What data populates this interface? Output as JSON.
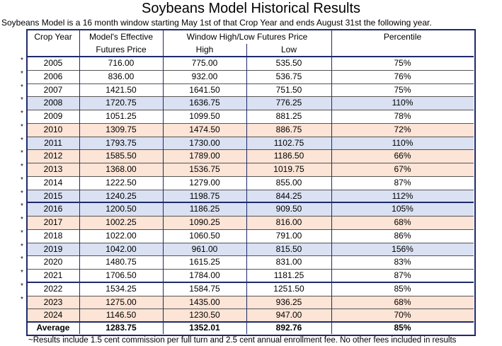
{
  "header": {
    "title": "Soybeans Model Historical Results",
    "subtitle": "Soybeans Model is a 16 month window starting May 1st of that Crop Year and ends August 31st the following year."
  },
  "table": {
    "columns": {
      "year": "Crop Year",
      "model": [
        "Model's Effective",
        "Futures Price"
      ],
      "window": "Window High/Low Futures Price",
      "high": "High",
      "low": "Low",
      "percentile": "Percentile"
    },
    "rows": [
      {
        "marker": "*",
        "shade": null,
        "cells": [
          "2005",
          "716.00",
          "775.00",
          "535.50",
          "75%"
        ]
      },
      {
        "marker": "*",
        "shade": null,
        "cells": [
          "2006",
          "836.00",
          "932.00",
          "536.75",
          "76%"
        ]
      },
      {
        "marker": "*",
        "shade": null,
        "cells": [
          "2007",
          "1421.50",
          "1641.50",
          "751.50",
          "75%"
        ]
      },
      {
        "marker": "*",
        "shade": "#d9e1f2",
        "cells": [
          "2008",
          "1720.75",
          "1636.75",
          "776.25",
          "110%"
        ]
      },
      {
        "marker": "*",
        "shade": null,
        "cells": [
          "2009",
          "1051.25",
          "1099.50",
          "881.25",
          "78%"
        ]
      },
      {
        "marker": "*",
        "shade": "#fce4d6",
        "cells": [
          "2010",
          "1309.75",
          "1474.50",
          "886.75",
          "72%"
        ]
      },
      {
        "marker": "*",
        "shade": "#d9e1f2",
        "cells": [
          "2011",
          "1793.75",
          "1730.00",
          "1102.75",
          "110%"
        ]
      },
      {
        "marker": "*",
        "shade": "#fce4d6",
        "cells": [
          "2012",
          "1585.50",
          "1789.00",
          "1186.50",
          "66%"
        ]
      },
      {
        "marker": "*",
        "shade": "#fce4d6",
        "cells": [
          "2013",
          "1368.00",
          "1536.75",
          "1019.75",
          "67%"
        ]
      },
      {
        "marker": "*",
        "shade": null,
        "cells": [
          "2014",
          "1222.50",
          "1279.00",
          "855.00",
          "87%"
        ]
      },
      {
        "marker": "*",
        "shade": "#d9e1f2",
        "cells": [
          "2015",
          "1240.25",
          "1198.75",
          "844.25",
          "112%"
        ]
      },
      {
        "marker": "*",
        "shade": "#d9e1f2",
        "cells": [
          "2016",
          "1200.50",
          "1186.25",
          "909.50",
          "105%"
        ]
      },
      {
        "marker": "*",
        "shade": "#fce4d6",
        "cells": [
          "2017",
          "1002.25",
          "1090.25",
          "816.00",
          "68%"
        ]
      },
      {
        "marker": "*",
        "shade": null,
        "cells": [
          "2018",
          "1022.00",
          "1060.50",
          "791.00",
          "86%"
        ]
      },
      {
        "marker": "*",
        "shade": "#d9e1f2",
        "cells": [
          "2019",
          "1042.00",
          "961.00",
          "815.50",
          "156%"
        ]
      },
      {
        "marker": "*",
        "shade": null,
        "cells": [
          "2020",
          "1480.75",
          "1615.25",
          "831.00",
          "83%"
        ]
      },
      {
        "marker": "*",
        "shade": null,
        "cells": [
          "2021",
          "1706.50",
          "1784.00",
          "1181.25",
          "87%"
        ]
      },
      {
        "marker": "*",
        "shade": null,
        "cells": [
          "2022",
          "1534.25",
          "1584.75",
          "1251.50",
          "85%"
        ]
      },
      {
        "marker": "*",
        "shade": "#fce4d6",
        "cells": [
          "2023",
          "1275.00",
          "1435.00",
          "936.25",
          "68%"
        ]
      },
      {
        "marker": null,
        "shade": "#fce4d6",
        "cells": [
          "2024",
          "1146.50",
          "1230.50",
          "947.00",
          "70%"
        ]
      }
    ],
    "average": [
      "Average",
      "1283.75",
      "1352.01",
      "892.76",
      "85%"
    ]
  },
  "footnote": "~Results include 1.5 cent commission per full turn and 2.5 cent annual enrollment fee. No other fees included in results"
}
